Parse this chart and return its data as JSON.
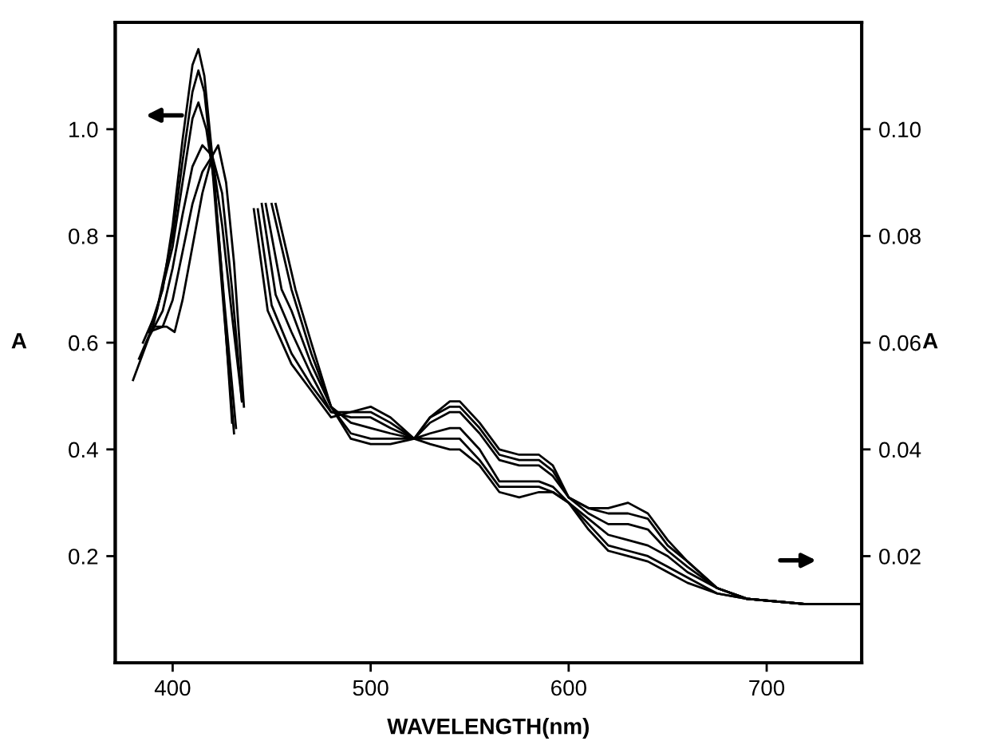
{
  "chart_data": {
    "type": "line",
    "xlabel": "WAVELENGTH(nm)",
    "ylabel": "A",
    "y2label": "A",
    "xlim": [
      371,
      748
    ],
    "xticks": [
      400,
      500,
      600,
      700
    ],
    "ylim": [
      0,
      1.2
    ],
    "yticks": [
      0.2,
      0.4,
      0.6,
      0.8,
      {
        "value": 1.0,
        "label": "1.0"
      }
    ],
    "y2lim": [
      0,
      0.12
    ],
    "y2ticks": [
      0.02,
      0.04,
      0.06,
      0.08,
      {
        "value": 0.1,
        "label": "0.10"
      }
    ],
    "grid": false,
    "line_style": "solid",
    "marker": "none",
    "series": [
      {
        "color": "#000000",
        "x": [
          388,
          395,
          400,
          405,
          410,
          413,
          416,
          420,
          425,
          430
        ],
        "values": [
          0.62,
          0.7,
          0.82,
          0.98,
          1.12,
          1.15,
          1.1,
          0.95,
          0.72,
          0.45
        ]
      },
      {
        "color": "#000000",
        "x": [
          385,
          392,
          400,
          405,
          410,
          413,
          416,
          420,
          425,
          431
        ],
        "values": [
          0.6,
          0.66,
          0.8,
          0.94,
          1.07,
          1.11,
          1.07,
          0.93,
          0.7,
          0.43
        ]
      },
      {
        "color": "#000000",
        "x": [
          383,
          390,
          400,
          405,
          410,
          413,
          417,
          421,
          426,
          432
        ],
        "values": [
          0.57,
          0.63,
          0.78,
          0.9,
          1.02,
          1.05,
          1.0,
          0.9,
          0.68,
          0.44
        ]
      },
      {
        "color": "#000000",
        "x": [
          380,
          388,
          395,
          400,
          405,
          410,
          415,
          420,
          425,
          430,
          435
        ],
        "values": [
          0.53,
          0.61,
          0.66,
          0.74,
          0.84,
          0.93,
          0.97,
          0.95,
          0.82,
          0.65,
          0.49
        ]
      },
      {
        "color": "#000000",
        "x": [
          388,
          395,
          400,
          405,
          410,
          415,
          420,
          425,
          430,
          435
        ],
        "values": [
          0.62,
          0.63,
          0.68,
          0.77,
          0.86,
          0.92,
          0.95,
          0.88,
          0.7,
          0.49
        ]
      },
      {
        "color": "#000000",
        "x": [
          390,
          397,
          401,
          405,
          410,
          415,
          420,
          423,
          427,
          431,
          436
        ],
        "values": [
          0.63,
          0.63,
          0.62,
          0.68,
          0.78,
          0.88,
          0.95,
          0.97,
          0.9,
          0.75,
          0.48
        ]
      },
      {
        "color": "#000000",
        "axis": "y2",
        "x": [
          441,
          448,
          460,
          470,
          480,
          490,
          500,
          510,
          522,
          530,
          540,
          545,
          555,
          565,
          575,
          585,
          592,
          600,
          610,
          620,
          630,
          640,
          650,
          660,
          675,
          690,
          720,
          748
        ],
        "values": [
          0.085,
          0.066,
          0.056,
          0.051,
          0.046,
          0.047,
          0.048,
          0.046,
          0.042,
          0.041,
          0.04,
          0.04,
          0.037,
          0.032,
          0.031,
          0.032,
          0.032,
          0.03,
          0.025,
          0.021,
          0.02,
          0.019,
          0.017,
          0.015,
          0.013,
          0.012,
          0.011,
          0.011
        ]
      },
      {
        "color": "#000000",
        "axis": "y2",
        "x": [
          443,
          450,
          460,
          470,
          480,
          490,
          500,
          510,
          522,
          530,
          540,
          545,
          555,
          565,
          575,
          585,
          592,
          600,
          610,
          620,
          630,
          640,
          650,
          660,
          675,
          690,
          720,
          748
        ],
        "values": [
          0.085,
          0.067,
          0.058,
          0.052,
          0.047,
          0.047,
          0.047,
          0.045,
          0.042,
          0.042,
          0.042,
          0.042,
          0.038,
          0.033,
          0.033,
          0.033,
          0.032,
          0.03,
          0.026,
          0.022,
          0.021,
          0.02,
          0.018,
          0.016,
          0.013,
          0.012,
          0.011,
          0.011
        ]
      },
      {
        "color": "#000000",
        "axis": "y2",
        "x": [
          445,
          452,
          460,
          470,
          480,
          490,
          500,
          510,
          522,
          530,
          540,
          545,
          555,
          565,
          575,
          585,
          592,
          600,
          610,
          620,
          630,
          640,
          650,
          660,
          675,
          690,
          720,
          748
        ],
        "values": [
          0.086,
          0.069,
          0.062,
          0.054,
          0.047,
          0.046,
          0.046,
          0.044,
          0.042,
          0.043,
          0.044,
          0.044,
          0.04,
          0.034,
          0.034,
          0.034,
          0.033,
          0.03,
          0.027,
          0.024,
          0.023,
          0.022,
          0.02,
          0.017,
          0.014,
          0.012,
          0.011,
          0.011
        ]
      },
      {
        "color": "#000000",
        "axis": "y2",
        "x": [
          447,
          455,
          460,
          470,
          480,
          490,
          500,
          510,
          522,
          530,
          540,
          545,
          555,
          565,
          575,
          585,
          592,
          600,
          610,
          620,
          630,
          640,
          650,
          660,
          675,
          690,
          720,
          748
        ],
        "values": [
          0.086,
          0.07,
          0.066,
          0.056,
          0.048,
          0.045,
          0.044,
          0.043,
          0.042,
          0.045,
          0.047,
          0.047,
          0.043,
          0.038,
          0.037,
          0.037,
          0.035,
          0.031,
          0.028,
          0.026,
          0.026,
          0.025,
          0.021,
          0.018,
          0.014,
          0.012,
          0.011,
          0.011
        ]
      },
      {
        "color": "#000000",
        "axis": "y2",
        "x": [
          450,
          455,
          460,
          470,
          480,
          490,
          500,
          510,
          522,
          530,
          540,
          545,
          555,
          565,
          575,
          585,
          592,
          600,
          610,
          620,
          630,
          640,
          650,
          660,
          675,
          690,
          720,
          748
        ],
        "values": [
          0.086,
          0.078,
          0.07,
          0.058,
          0.048,
          0.043,
          0.042,
          0.042,
          0.042,
          0.046,
          0.048,
          0.048,
          0.044,
          0.039,
          0.038,
          0.038,
          0.036,
          0.031,
          0.029,
          0.028,
          0.028,
          0.027,
          0.022,
          0.019,
          0.014,
          0.012,
          0.011,
          0.011
        ]
      },
      {
        "color": "#000000",
        "axis": "y2",
        "x": [
          452,
          457,
          462,
          470,
          480,
          490,
          500,
          510,
          522,
          530,
          540,
          545,
          555,
          565,
          575,
          585,
          592,
          600,
          610,
          620,
          630,
          640,
          650,
          660,
          675,
          690,
          720,
          748
        ],
        "values": [
          0.086,
          0.078,
          0.07,
          0.06,
          0.048,
          0.042,
          0.041,
          0.041,
          0.042,
          0.046,
          0.049,
          0.049,
          0.045,
          0.04,
          0.039,
          0.039,
          0.037,
          0.031,
          0.029,
          0.029,
          0.03,
          0.028,
          0.023,
          0.019,
          0.014,
          0.012,
          0.011,
          0.011
        ]
      }
    ]
  }
}
